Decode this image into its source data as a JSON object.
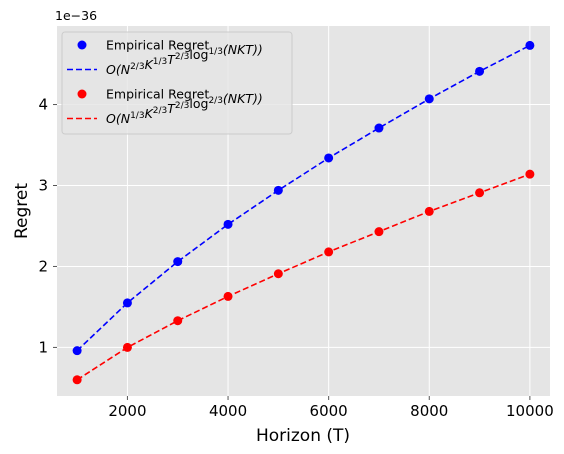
{
  "chart_data": {
    "type": "line",
    "title": "",
    "xlabel": "Horizon (T)",
    "ylabel": "Regret",
    "y_offset_label": "1e−36",
    "xlim": [
      600,
      10400
    ],
    "ylim": [
      0.4,
      4.97
    ],
    "x_ticks": [
      2000,
      4000,
      6000,
      8000,
      10000
    ],
    "y_ticks": [
      1,
      2,
      3,
      4
    ],
    "grid": true,
    "legend_position": "top-left",
    "x": [
      1000,
      2000,
      3000,
      4000,
      5000,
      6000,
      7000,
      8000,
      9000,
      10000
    ],
    "series": [
      {
        "name": "Empirical Regret",
        "kind": "markers",
        "color": "#0000ff",
        "values": [
          0.96,
          1.55,
          2.06,
          2.52,
          2.94,
          3.34,
          3.71,
          4.07,
          4.41,
          4.73
        ]
      },
      {
        "name": "O(N^{2/3}K^{1/3}T^{2/3}log^{1/3}(NKT))",
        "kind": "dashed-line",
        "color": "#0000ff",
        "values": [
          0.96,
          1.55,
          2.06,
          2.52,
          2.94,
          3.34,
          3.71,
          4.07,
          4.41,
          4.73
        ]
      },
      {
        "name": "Empirical Regret",
        "kind": "markers",
        "color": "#ff0000",
        "values": [
          0.6,
          1.0,
          1.33,
          1.63,
          1.91,
          2.18,
          2.43,
          2.68,
          2.91,
          3.14
        ]
      },
      {
        "name": "O(N^{1/3}K^{2/3}T^{2/3}log^{2/3}(NKT))",
        "kind": "dashed-line",
        "color": "#ff0000",
        "values": [
          0.6,
          1.0,
          1.33,
          1.63,
          1.91,
          2.18,
          2.43,
          2.68,
          2.91,
          3.14
        ]
      }
    ]
  },
  "legend": {
    "entries": [
      {
        "label": "Empirical Regret",
        "color": "#0000ff",
        "kind": "marker"
      },
      {
        "label": "O(N^{2/3}K^{1/3}T^{2/3}log^{1/3}(NKT))",
        "color": "#0000ff",
        "kind": "dash"
      },
      {
        "label": "Empirical Regret",
        "color": "#ff0000",
        "kind": "marker"
      },
      {
        "label": "O(N^{1/3}K^{2/3}T^{2/3}log^{2/3}(NKT))",
        "color": "#ff0000",
        "kind": "dash"
      }
    ]
  },
  "style": {
    "plot_bg": "#e5e5e5",
    "grid_color": "#ffffff"
  }
}
